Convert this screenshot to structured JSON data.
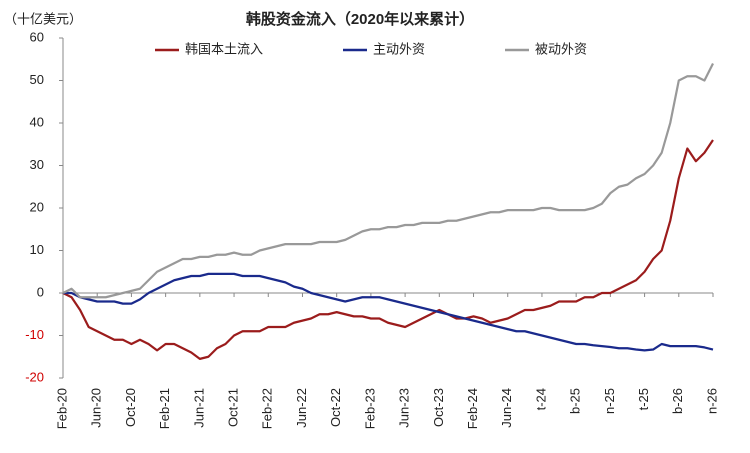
{
  "chart_data": {
    "type": "line",
    "title": "韩股资金流入（2020年以来累计）",
    "y_axis_label": "（十亿美元）",
    "categories": [
      "Feb-20",
      null,
      null,
      null,
      "Jun-20",
      null,
      null,
      null,
      "Oct-20",
      null,
      null,
      null,
      "Feb-21",
      null,
      null,
      null,
      "Jun-21",
      null,
      null,
      null,
      "Oct-21",
      null,
      null,
      null,
      "Feb-22",
      null,
      null,
      null,
      "Jun-22",
      null,
      null,
      null,
      "Oct-22",
      null,
      null,
      null,
      "Feb-23",
      null,
      null,
      null,
      "Jun-23",
      null,
      null,
      null,
      "Oct-23",
      null,
      null,
      null,
      "Feb-24",
      null,
      null,
      null,
      "Jun-24",
      null,
      null,
      null,
      "t-24",
      null,
      null,
      null,
      "b-25",
      null,
      null,
      null,
      "n-25",
      null,
      null,
      null,
      "t-25",
      null,
      null,
      null,
      "b-26",
      null,
      null,
      null,
      "n-26"
    ],
    "series": [
      {
        "name": "韩国本土流入",
        "color": "#9b1c1c",
        "values": [
          0,
          -1,
          -4,
          -8,
          -9,
          -10,
          -11,
          -11,
          -12,
          -11,
          -12,
          -13.5,
          -12,
          -12,
          -13,
          -14,
          -15.5,
          -15,
          -13,
          -12,
          -10,
          -9,
          -9,
          -9,
          -8,
          -8,
          -8,
          -7,
          -6.5,
          -6,
          -5,
          -5,
          -4.5,
          -5,
          -5.5,
          -5.5,
          -6,
          -6,
          -7,
          -7.5,
          -8,
          -7,
          -6,
          -5,
          -4,
          -5,
          -6,
          -6,
          -5.5,
          -6,
          -7,
          -6.5,
          -6,
          -5,
          -4,
          -4,
          -3.5,
          -3,
          -2,
          -2,
          -2,
          -1,
          -1,
          0,
          0,
          1,
          2,
          3,
          5,
          8,
          10,
          17,
          27,
          34,
          31,
          33,
          36
        ]
      },
      {
        "name": "主动外资",
        "color": "#1a2a8c",
        "values": [
          0,
          0,
          -1,
          -1.5,
          -2,
          -2,
          -2,
          -2.5,
          -2.5,
          -1.5,
          0,
          1,
          2,
          3,
          3.5,
          4,
          4,
          4.5,
          4.5,
          4.5,
          4.5,
          4,
          4,
          4,
          3.5,
          3,
          2.5,
          1.5,
          1,
          0,
          -0.5,
          -1,
          -1.5,
          -2,
          -1.5,
          -1,
          -1,
          -1,
          -1.5,
          -2,
          -2.5,
          -3,
          -3.5,
          -4,
          -4.5,
          -5,
          -5.5,
          -6,
          -6.5,
          -7,
          -7.5,
          -8,
          -8.5,
          -9,
          -9,
          -9.5,
          -10,
          -10.5,
          -11,
          -11.5,
          -12,
          -12,
          -12.3,
          -12.5,
          -12.7,
          -13,
          -13,
          -13.3,
          -13.5,
          -13.3,
          -12,
          -12.5,
          -12.5,
          -12.5,
          -12.5,
          -12.8,
          -13.3
        ]
      },
      {
        "name": "被动外资",
        "color": "#999999",
        "values": [
          0,
          1,
          -1,
          -1,
          -1,
          -1,
          -0.5,
          0,
          0.5,
          1,
          3,
          5,
          6,
          7,
          8,
          8,
          8.5,
          8.5,
          9,
          9,
          9.5,
          9,
          9,
          10,
          10.5,
          11,
          11.5,
          11.5,
          11.5,
          11.5,
          12,
          12,
          12,
          12.5,
          13.5,
          14.5,
          15,
          15,
          15.5,
          15.5,
          16,
          16,
          16.5,
          16.5,
          16.5,
          17,
          17,
          17.5,
          18,
          18.5,
          19,
          19,
          19.5,
          19.5,
          19.5,
          19.5,
          20,
          20,
          19.5,
          19.5,
          19.5,
          19.5,
          20,
          21,
          23.5,
          25,
          25.5,
          27,
          28,
          30,
          33,
          40,
          50,
          51,
          51,
          50,
          54
        ]
      }
    ],
    "ylim": [
      -20,
      60
    ],
    "yticks": [
      -20,
      -10,
      0,
      10,
      20,
      30,
      40,
      50,
      60
    ],
    "negative_tick_color": "#d00000",
    "legend": "top",
    "grid": false
  }
}
